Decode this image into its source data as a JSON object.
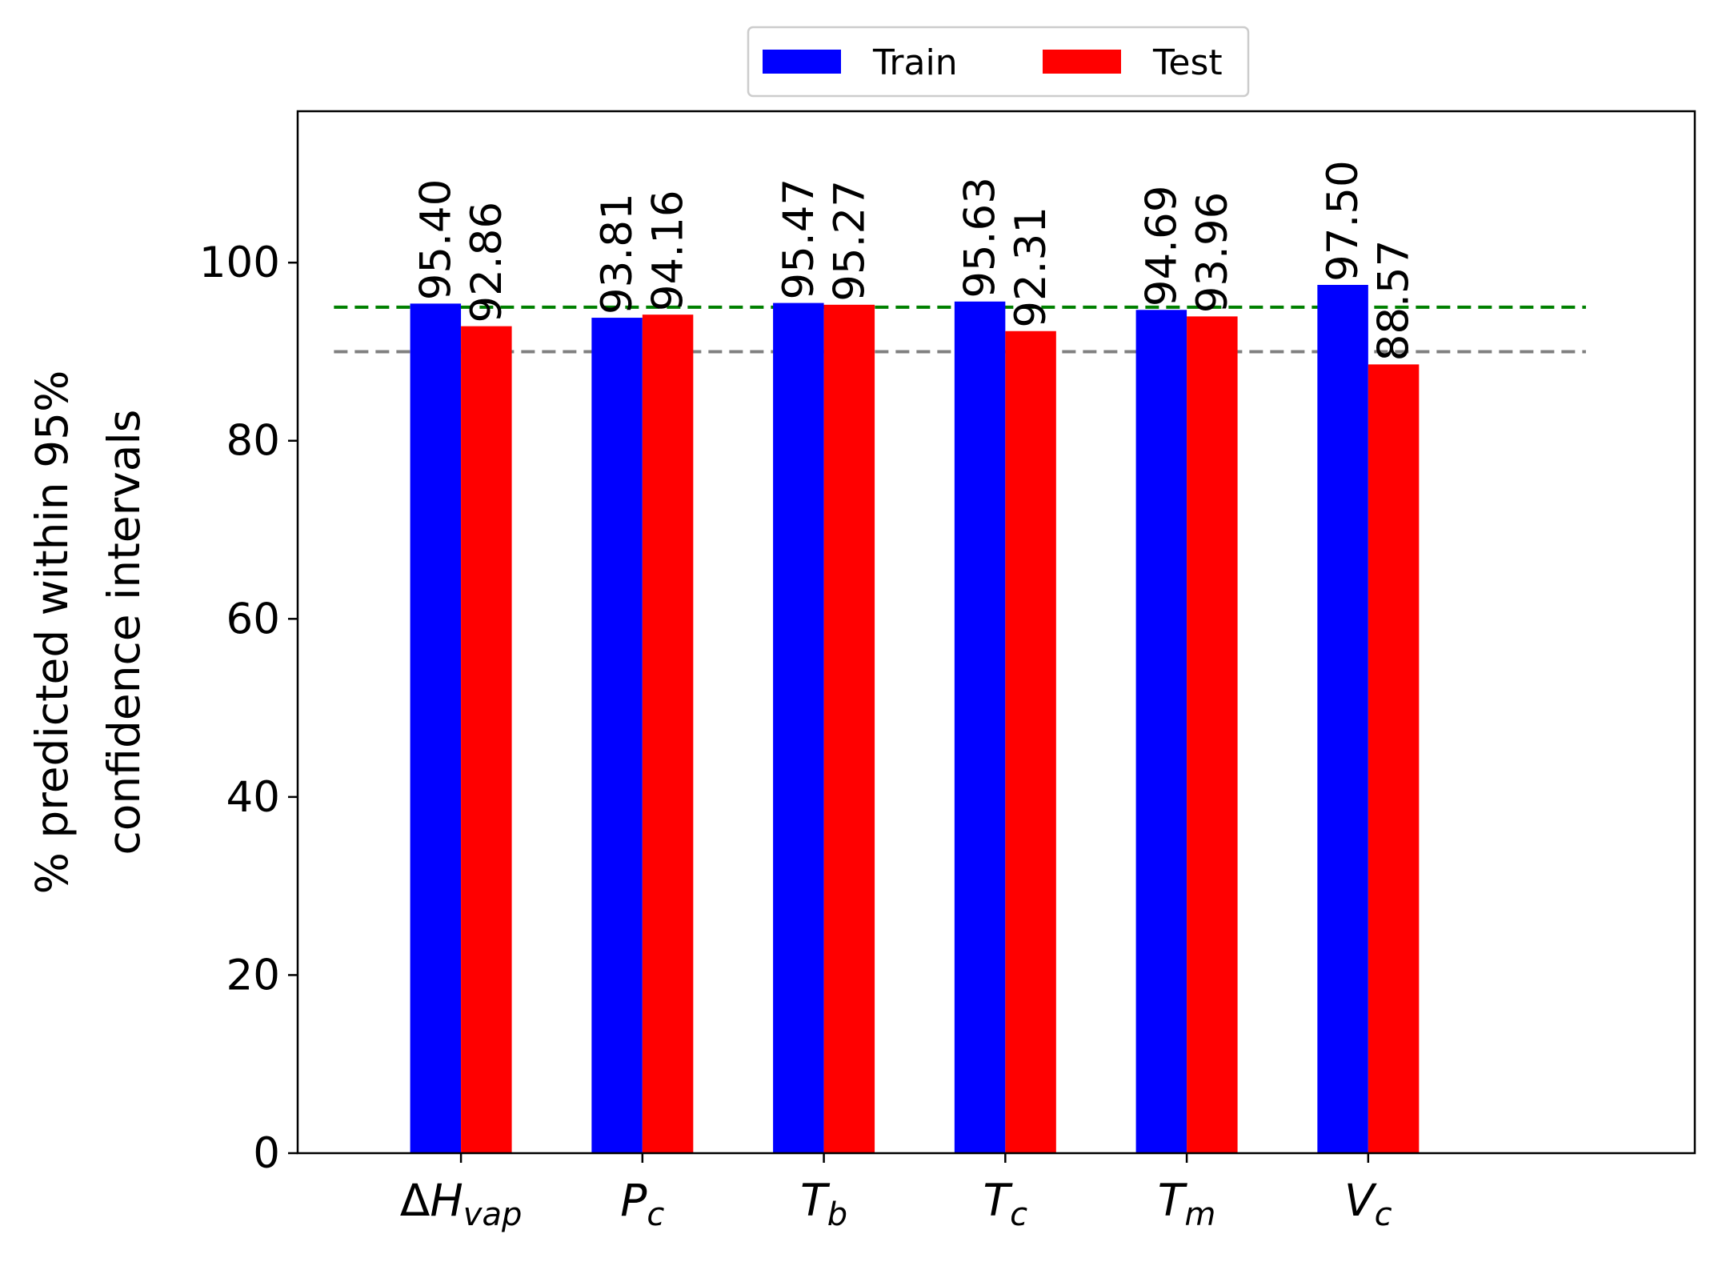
{
  "chart_data": {
    "type": "bar",
    "title": "",
    "ylabel_lines": [
      "% predicted within 95%",
      "confidence intervals"
    ],
    "xlabel": "",
    "categories": [
      {
        "main": "ΔH",
        "sub": "vap"
      },
      {
        "main": "P",
        "sub": "c"
      },
      {
        "main": "T",
        "sub": "b"
      },
      {
        "main": "T",
        "sub": "c"
      },
      {
        "main": "T",
        "sub": "m"
      },
      {
        "main": "V",
        "sub": "c"
      }
    ],
    "series": [
      {
        "name": "Train",
        "color": "#0000ff",
        "values": [
          95.4,
          93.81,
          95.47,
          95.63,
          94.69,
          97.5
        ],
        "labels": [
          "95.40",
          "93.81",
          "95.47",
          "95.63",
          "94.69",
          "97.50"
        ]
      },
      {
        "name": "Test",
        "color": "#ff0000",
        "values": [
          92.86,
          94.16,
          95.27,
          92.31,
          93.96,
          88.57
        ],
        "labels": [
          "92.86",
          "94.16",
          "95.27",
          "92.31",
          "93.96",
          "88.57"
        ]
      }
    ],
    "yticks": [
      "0",
      "20",
      "40",
      "60",
      "80",
      "100"
    ],
    "ylim": [
      0,
      117
    ],
    "xlim": [
      -0.9,
      6.8
    ],
    "reference_lines": [
      {
        "value": 95,
        "color": "#008000",
        "style": "dashed"
      },
      {
        "value": 90,
        "color": "#808080",
        "style": "dashed"
      }
    ],
    "legend": {
      "placement": "top-center-outside",
      "columns": 2
    },
    "grid": false
  }
}
